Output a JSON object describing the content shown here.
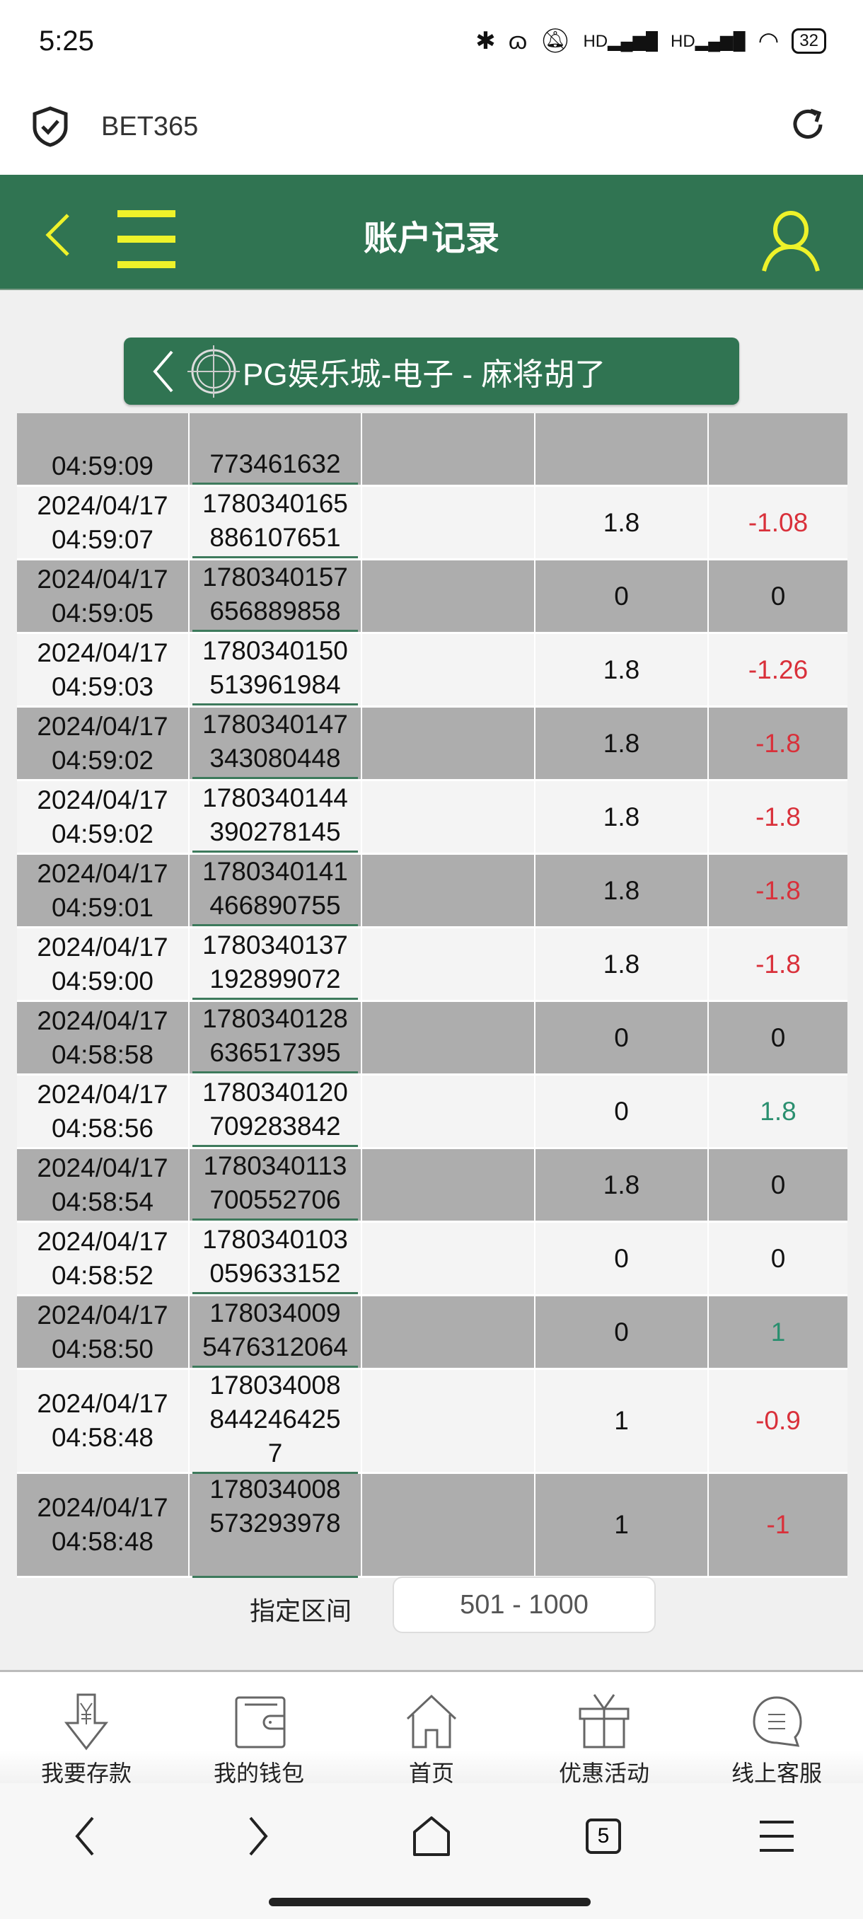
{
  "status_bar": {
    "time": "5:25",
    "battery": "32"
  },
  "browser": {
    "url": "BET365"
  },
  "header": {
    "title": "账户记录"
  },
  "subtitle": {
    "text": "PG娱乐城-电子 - 麻将胡了"
  },
  "colors": {
    "header_green": "#307452",
    "accent_yellow": "#eef22a",
    "negative": "#d9303a",
    "positive": "#2a8f6f",
    "row_gray": "#adadad",
    "row_light": "#f4f4f4"
  },
  "records": [
    {
      "date": [
        "",
        "04:59:09"
      ],
      "id": [
        "",
        "773461632"
      ],
      "bet": "",
      "result": "",
      "sign": ""
    },
    {
      "date": [
        "2024/04/17",
        "04:59:07"
      ],
      "id": [
        "1780340165",
        "886107651"
      ],
      "bet": "1.8",
      "result": "-1.08",
      "sign": "neg"
    },
    {
      "date": [
        "2024/04/17",
        "04:59:05"
      ],
      "id": [
        "1780340157",
        "656889858"
      ],
      "bet": "0",
      "result": "0",
      "sign": ""
    },
    {
      "date": [
        "2024/04/17",
        "04:59:03"
      ],
      "id": [
        "1780340150",
        "513961984"
      ],
      "bet": "1.8",
      "result": "-1.26",
      "sign": "neg"
    },
    {
      "date": [
        "2024/04/17",
        "04:59:02"
      ],
      "id": [
        "1780340147",
        "343080448"
      ],
      "bet": "1.8",
      "result": "-1.8",
      "sign": "neg"
    },
    {
      "date": [
        "2024/04/17",
        "04:59:02"
      ],
      "id": [
        "1780340144",
        "390278145"
      ],
      "bet": "1.8",
      "result": "-1.8",
      "sign": "neg"
    },
    {
      "date": [
        "2024/04/17",
        "04:59:01"
      ],
      "id": [
        "1780340141",
        "466890755"
      ],
      "bet": "1.8",
      "result": "-1.8",
      "sign": "neg"
    },
    {
      "date": [
        "2024/04/17",
        "04:59:00"
      ],
      "id": [
        "1780340137",
        "192899072"
      ],
      "bet": "1.8",
      "result": "-1.8",
      "sign": "neg"
    },
    {
      "date": [
        "2024/04/17",
        "04:58:58"
      ],
      "id": [
        "1780340128",
        "636517395"
      ],
      "bet": "0",
      "result": "0",
      "sign": ""
    },
    {
      "date": [
        "2024/04/17",
        "04:58:56"
      ],
      "id": [
        "1780340120",
        "709283842"
      ],
      "bet": "0",
      "result": "1.8",
      "sign": "pos"
    },
    {
      "date": [
        "2024/04/17",
        "04:58:54"
      ],
      "id": [
        "1780340113",
        "700552706"
      ],
      "bet": "1.8",
      "result": "0",
      "sign": ""
    },
    {
      "date": [
        "2024/04/17",
        "04:58:52"
      ],
      "id": [
        "1780340103",
        "059633152"
      ],
      "bet": "0",
      "result": "0",
      "sign": ""
    },
    {
      "date": [
        "2024/04/17",
        "04:58:50"
      ],
      "id": [
        "178034009",
        "5476312064"
      ],
      "bet": "0",
      "result": "1",
      "sign": "pos"
    },
    {
      "date": [
        "2024/04/17",
        "04:58:48"
      ],
      "id": [
        "178034008",
        "844246425",
        "7"
      ],
      "bet": "1",
      "result": "-0.9",
      "sign": "neg"
    },
    {
      "date": [
        "2024/04/17",
        "04:58:48"
      ],
      "id": [
        "178034008",
        "573293978",
        ""
      ],
      "bet": "1",
      "result": "-1",
      "sign": "neg"
    }
  ],
  "range": {
    "label": "指定区间",
    "value": "501 - 1000"
  },
  "bottom_nav": [
    {
      "label": "我要存款",
      "icon": "deposit-icon"
    },
    {
      "label": "我的钱包",
      "icon": "wallet-icon"
    },
    {
      "label": "首页",
      "icon": "home-icon"
    },
    {
      "label": "优惠活动",
      "icon": "gift-icon"
    },
    {
      "label": "线上客服",
      "icon": "chat-icon"
    }
  ],
  "system_nav": {
    "tab_count": "5"
  }
}
